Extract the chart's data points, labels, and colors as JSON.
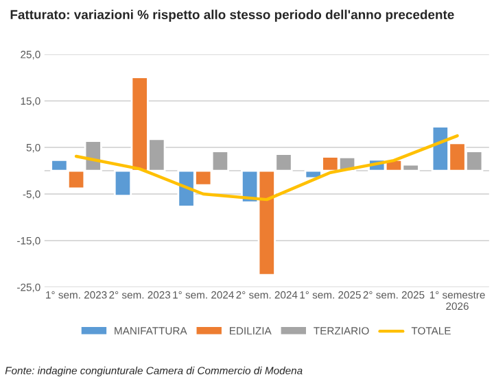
{
  "chart_data": {
    "type": "bar",
    "title": "Fatturato: variazioni % rispetto allo stesso periodo dell'anno precedente",
    "categories": [
      "1° sem. 2023",
      "2° sem. 2023",
      "1° sem. 2024",
      "2° sem. 2024",
      "1° sem. 2025",
      "2° sem. 2025",
      "1° semestre\n2026"
    ],
    "series": [
      {
        "name": "MANIFATTURA",
        "color": "#5b9bd5",
        "values": [
          2.3,
          -5.4,
          -7.7,
          -6.8,
          -1.6,
          2.4,
          9.5
        ]
      },
      {
        "name": "EDILIZIA",
        "color": "#ed7d31",
        "values": [
          -3.8,
          20.1,
          -3.1,
          -22.4,
          3.0,
          2.3,
          5.9
        ]
      },
      {
        "name": "TERZIARIO",
        "color": "#a5a5a5",
        "values": [
          6.4,
          6.8,
          4.2,
          3.6,
          2.9,
          1.3,
          4.2
        ]
      },
      {
        "name": "TOTALE",
        "type": "line",
        "color": "#ffc000",
        "values": [
          3.1,
          0.4,
          -5.0,
          -6.2,
          -0.4,
          2.2,
          7.5
        ]
      }
    ],
    "ylim": [
      -25,
      25
    ],
    "yticks": [
      {
        "value": -25,
        "label": "-25,0"
      },
      {
        "value": -15,
        "label": "-15,0"
      },
      {
        "value": -5,
        "label": "-5,0"
      },
      {
        "value": 5,
        "label": "5,0"
      },
      {
        "value": 15,
        "label": "15,0"
      },
      {
        "value": 25,
        "label": "25,0"
      }
    ],
    "grid": "y",
    "legend": "bottom",
    "annotations": [
      "Fonte: indagine congiunturale Camera di Commercio di Modena"
    ]
  }
}
